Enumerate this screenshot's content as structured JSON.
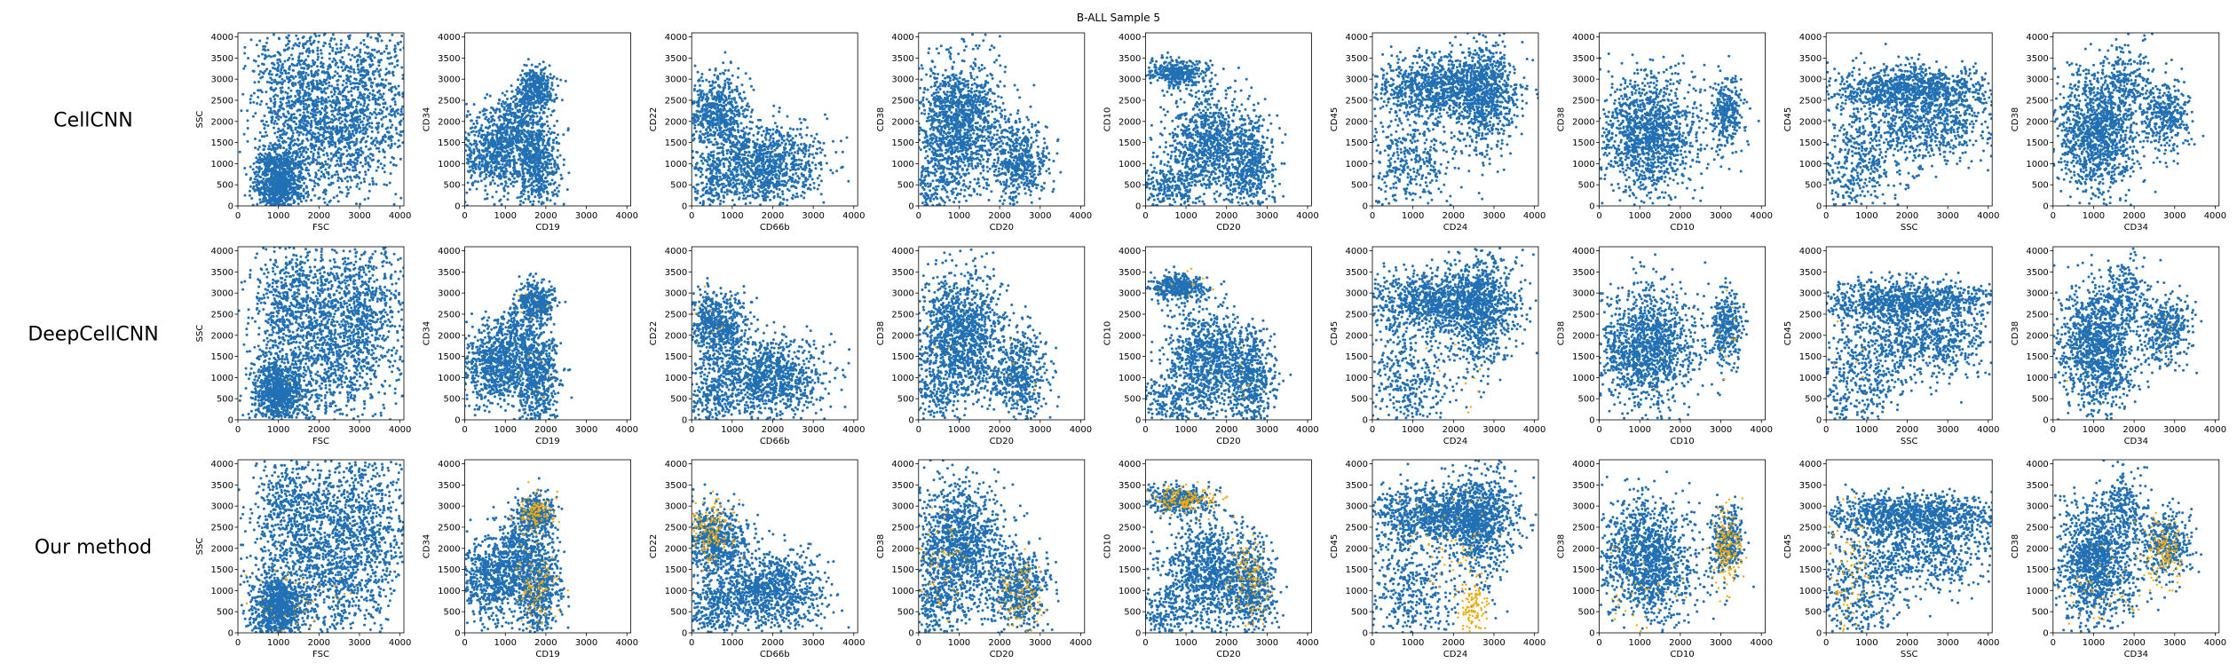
{
  "figure": {
    "title": "B-ALL Sample 5",
    "colors": {
      "background_cells": "#2270b4",
      "highlighted_cells": "#f2a900",
      "frame": "#000000"
    }
  },
  "chart_data": {
    "type": "scatter",
    "title": "B-ALL Sample 5",
    "rows": [
      "CellCNN",
      "DeepCellCNN",
      "Our method"
    ],
    "series": [
      {
        "name": "",
        "color": "#2270b4"
      },
      {
        "name": "",
        "color": "#f2a900"
      }
    ],
    "highlighted_points_per_row": [
      "none",
      "few",
      "many"
    ],
    "xlim": [
      0,
      4096
    ],
    "ylim": [
      0,
      4096
    ],
    "x_ticks": [
      0,
      1000,
      2000,
      3000,
      4000
    ],
    "y_ticks": [
      0,
      500,
      1000,
      1500,
      2000,
      2500,
      3000,
      3500,
      4000
    ],
    "panels": [
      {
        "xlabel": "FSC",
        "ylabel": "SSC",
        "clusters": [
          {
            "series": 0,
            "cx": 1000,
            "cy": 600,
            "sx": 300,
            "sy": 400,
            "n": 900
          },
          {
            "series": 0,
            "cx": 2200,
            "cy": 1600,
            "sx": 900,
            "sy": 900,
            "n": 1100
          },
          {
            "series": 0,
            "cx": 1400,
            "cy": 3000,
            "sx": 550,
            "sy": 700,
            "n": 500
          },
          {
            "series": 0,
            "cx": 3100,
            "cy": 2800,
            "sx": 700,
            "sy": 900,
            "n": 600
          },
          {
            "series": 1,
            "cx": 1300,
            "cy": 700,
            "sx": 600,
            "sy": 500,
            "n": 40
          }
        ]
      },
      {
        "xlabel": "CD19",
        "ylabel": "CD34",
        "clusters": [
          {
            "series": 0,
            "cx": 700,
            "cy": 1300,
            "sx": 450,
            "sy": 500,
            "n": 700
          },
          {
            "series": 0,
            "cx": 1800,
            "cy": 1000,
            "sx": 280,
            "sy": 600,
            "n": 600
          },
          {
            "series": 0,
            "cx": 1750,
            "cy": 2800,
            "sx": 230,
            "sy": 240,
            "n": 350
          },
          {
            "series": 0,
            "cx": 1300,
            "cy": 2000,
            "sx": 300,
            "sy": 350,
            "n": 250
          },
          {
            "series": 1,
            "cx": 1750,
            "cy": 2800,
            "sx": 200,
            "sy": 200,
            "n": 120
          },
          {
            "series": 1,
            "cx": 1750,
            "cy": 1100,
            "sx": 250,
            "sy": 450,
            "n": 100
          }
        ]
      },
      {
        "xlabel": "CD66b",
        "ylabel": "CD22",
        "clusters": [
          {
            "series": 0,
            "cx": 600,
            "cy": 2200,
            "sx": 380,
            "sy": 430,
            "n": 600
          },
          {
            "series": 0,
            "cx": 1900,
            "cy": 1000,
            "sx": 700,
            "sy": 480,
            "n": 1000
          },
          {
            "series": 0,
            "cx": 500,
            "cy": 600,
            "sx": 350,
            "sy": 400,
            "n": 250
          },
          {
            "series": 1,
            "cx": 450,
            "cy": 2400,
            "sx": 260,
            "sy": 360,
            "n": 150
          }
        ]
      },
      {
        "xlabel": "CD20",
        "ylabel": "CD38",
        "clusters": [
          {
            "series": 0,
            "cx": 1000,
            "cy": 2000,
            "sx": 550,
            "sy": 750,
            "n": 1300
          },
          {
            "series": 0,
            "cx": 2500,
            "cy": 1000,
            "sx": 350,
            "sy": 500,
            "n": 500
          },
          {
            "series": 0,
            "cx": 400,
            "cy": 500,
            "sx": 300,
            "sy": 450,
            "n": 200
          },
          {
            "series": 1,
            "cx": 2550,
            "cy": 900,
            "sx": 300,
            "sy": 450,
            "n": 110
          },
          {
            "series": 1,
            "cx": 500,
            "cy": 1700,
            "sx": 350,
            "sy": 700,
            "n": 60
          }
        ]
      },
      {
        "xlabel": "CD20",
        "ylabel": "CD10",
        "clusters": [
          {
            "series": 0,
            "cx": 800,
            "cy": 3150,
            "sx": 380,
            "sy": 160,
            "n": 350
          },
          {
            "series": 0,
            "cx": 1500,
            "cy": 1400,
            "sx": 500,
            "sy": 650,
            "n": 900
          },
          {
            "series": 0,
            "cx": 2600,
            "cy": 1000,
            "sx": 300,
            "sy": 550,
            "n": 500
          },
          {
            "series": 0,
            "cx": 500,
            "cy": 400,
            "sx": 350,
            "sy": 350,
            "n": 200
          },
          {
            "series": 1,
            "cx": 900,
            "cy": 3150,
            "sx": 450,
            "sy": 160,
            "n": 160
          },
          {
            "series": 1,
            "cx": 2600,
            "cy": 1200,
            "sx": 260,
            "sy": 500,
            "n": 120
          }
        ]
      },
      {
        "xlabel": "CD24",
        "ylabel": "CD45",
        "clusters": [
          {
            "series": 0,
            "cx": 1600,
            "cy": 2800,
            "sx": 900,
            "sy": 350,
            "n": 1000
          },
          {
            "series": 0,
            "cx": 2700,
            "cy": 2600,
            "sx": 400,
            "sy": 700,
            "n": 700
          },
          {
            "series": 0,
            "cx": 900,
            "cy": 1000,
            "sx": 600,
            "sy": 700,
            "n": 400
          },
          {
            "series": 1,
            "cx": 2500,
            "cy": 500,
            "sx": 150,
            "sy": 400,
            "n": 120
          },
          {
            "series": 1,
            "cx": 1900,
            "cy": 2000,
            "sx": 600,
            "sy": 500,
            "n": 60
          }
        ]
      },
      {
        "xlabel": "CD10",
        "ylabel": "CD38",
        "clusters": [
          {
            "series": 0,
            "cx": 1200,
            "cy": 1700,
            "sx": 600,
            "sy": 700,
            "n": 1300
          },
          {
            "series": 0,
            "cx": 3150,
            "cy": 2200,
            "sx": 200,
            "sy": 400,
            "n": 300
          },
          {
            "series": 1,
            "cx": 3150,
            "cy": 2000,
            "sx": 200,
            "sy": 450,
            "n": 170
          },
          {
            "series": 1,
            "cx": 900,
            "cy": 900,
            "sx": 600,
            "sy": 600,
            "n": 40
          }
        ]
      },
      {
        "xlabel": "SSC",
        "ylabel": "CD45",
        "clusters": [
          {
            "series": 0,
            "cx": 2000,
            "cy": 2800,
            "sx": 1100,
            "sy": 250,
            "n": 1000
          },
          {
            "series": 0,
            "cx": 2400,
            "cy": 1900,
            "sx": 1000,
            "sy": 450,
            "n": 700
          },
          {
            "series": 0,
            "cx": 700,
            "cy": 800,
            "sx": 600,
            "sy": 700,
            "n": 400
          },
          {
            "series": 1,
            "cx": 500,
            "cy": 1400,
            "sx": 350,
            "sy": 900,
            "n": 90
          }
        ]
      },
      {
        "xlabel": "CD34",
        "ylabel": "CD38",
        "clusters": [
          {
            "series": 0,
            "cx": 1100,
            "cy": 1700,
            "sx": 500,
            "sy": 750,
            "n": 1200
          },
          {
            "series": 0,
            "cx": 2800,
            "cy": 2100,
            "sx": 300,
            "sy": 400,
            "n": 350
          },
          {
            "series": 0,
            "cx": 1800,
            "cy": 3000,
            "sx": 300,
            "sy": 400,
            "n": 200
          },
          {
            "series": 1,
            "cx": 2700,
            "cy": 2000,
            "sx": 250,
            "sy": 400,
            "n": 140
          },
          {
            "series": 1,
            "cx": 1200,
            "cy": 900,
            "sx": 500,
            "sy": 500,
            "n": 40
          }
        ]
      }
    ]
  }
}
